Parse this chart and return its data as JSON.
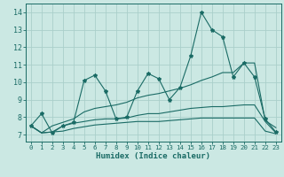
{
  "xlabel": "Humidex (Indice chaleur)",
  "xlim": [
    -0.5,
    23.5
  ],
  "ylim": [
    6.6,
    14.5
  ],
  "xticks": [
    0,
    1,
    2,
    3,
    4,
    5,
    6,
    7,
    8,
    9,
    10,
    11,
    12,
    13,
    14,
    15,
    16,
    17,
    18,
    19,
    20,
    21,
    22,
    23
  ],
  "yticks": [
    7,
    8,
    9,
    10,
    11,
    12,
    13,
    14
  ],
  "bg_color": "#cbe8e3",
  "grid_color": "#aacfca",
  "line_color": "#1a6b65",
  "lw": 0.8,
  "ms": 3.0,
  "series1_y": [
    7.5,
    8.2,
    7.1,
    7.5,
    7.7,
    10.1,
    10.4,
    9.5,
    7.9,
    8.0,
    9.5,
    10.5,
    10.2,
    9.0,
    9.7,
    11.5,
    14.0,
    13.0,
    12.6,
    10.3,
    11.1,
    10.3,
    7.9,
    7.15
  ],
  "series2_y": [
    7.5,
    7.1,
    7.5,
    7.7,
    7.9,
    8.3,
    8.5,
    8.6,
    8.7,
    8.85,
    9.1,
    9.25,
    9.35,
    9.5,
    9.65,
    9.85,
    10.1,
    10.3,
    10.55,
    10.55,
    11.1,
    11.1,
    7.8,
    7.4
  ],
  "series3_y": [
    7.5,
    7.1,
    7.15,
    7.5,
    7.65,
    7.75,
    7.85,
    7.9,
    7.9,
    7.95,
    8.1,
    8.2,
    8.2,
    8.3,
    8.4,
    8.5,
    8.55,
    8.6,
    8.6,
    8.65,
    8.7,
    8.7,
    7.75,
    7.1
  ],
  "series4_y": [
    7.5,
    7.1,
    7.15,
    7.2,
    7.35,
    7.45,
    7.55,
    7.6,
    7.65,
    7.7,
    7.75,
    7.75,
    7.75,
    7.8,
    7.85,
    7.9,
    7.95,
    7.95,
    7.95,
    7.95,
    7.95,
    7.95,
    7.2,
    7.05
  ]
}
